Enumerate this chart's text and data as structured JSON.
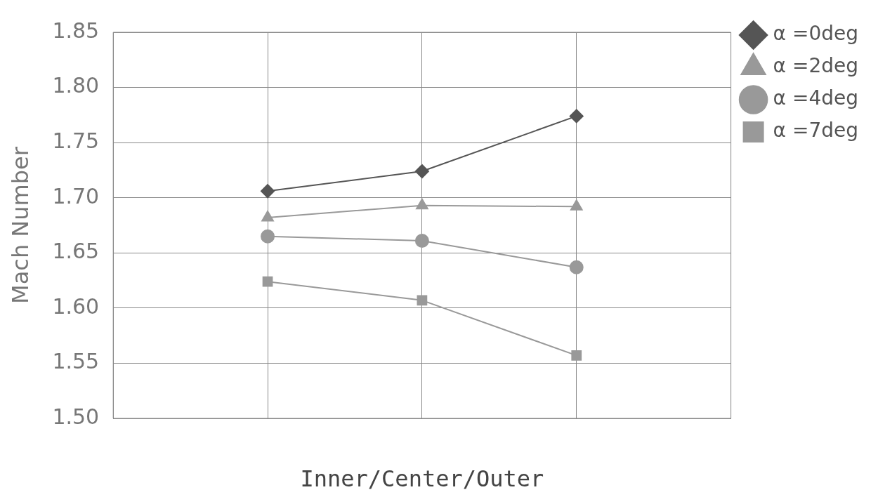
{
  "chart_data": {
    "type": "line",
    "xlabel": "Inner/Center/Outer",
    "ylabel": "Mach Number",
    "categories": [
      null,
      null,
      null
    ],
    "series": [
      {
        "name": "α =0deg",
        "color": "#555555",
        "marker": "diamond",
        "values": [
          1.706,
          1.724,
          1.774
        ]
      },
      {
        "name": "α =2deg",
        "color": "#999999",
        "marker": "triangle",
        "values": [
          1.682,
          1.693,
          1.692
        ]
      },
      {
        "name": "α =4deg",
        "color": "#999999",
        "marker": "circle",
        "values": [
          1.665,
          1.661,
          1.637
        ]
      },
      {
        "name": "α =7deg",
        "color": "#999999",
        "marker": "square",
        "values": [
          1.624,
          1.607,
          1.557
        ]
      }
    ],
    "ylim": [
      1.5,
      1.85
    ],
    "yticks": [
      {
        "value": 1.5,
        "label": "1.50"
      },
      {
        "value": 1.55,
        "label": "1.55"
      },
      {
        "value": 1.6,
        "label": "1.60"
      },
      {
        "value": 1.65,
        "label": "1.65"
      },
      {
        "value": 1.7,
        "label": "1.70"
      },
      {
        "value": 1.75,
        "label": "1.75"
      },
      {
        "value": 1.8,
        "label": "1.80"
      },
      {
        "value": 1.85,
        "label": "1.85"
      }
    ],
    "grid": true,
    "legend": "top right",
    "line_style": "solid"
  }
}
